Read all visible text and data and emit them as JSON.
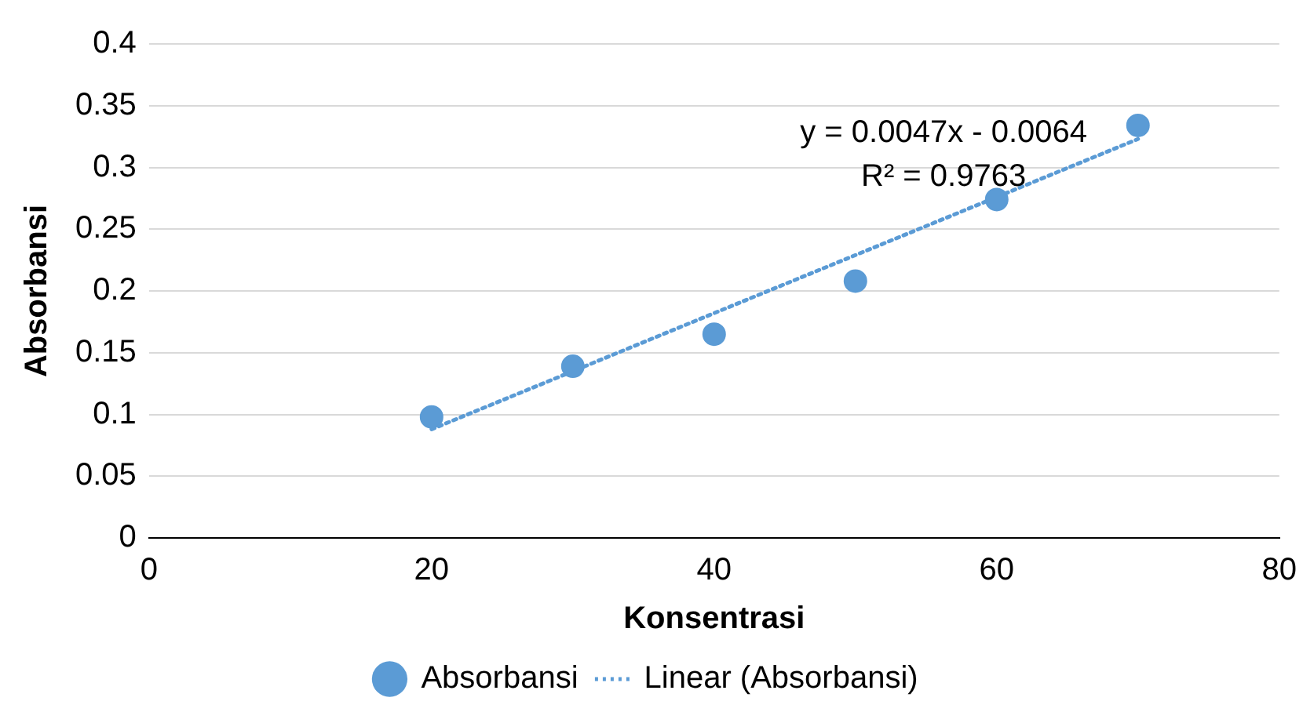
{
  "chart_data": {
    "type": "scatter",
    "xlabel": "Konsentrasi",
    "ylabel": "Absorbansi",
    "xlim": [
      0,
      80
    ],
    "xticks": [
      0,
      20,
      40,
      60,
      80
    ],
    "ylim": [
      0,
      0.4
    ],
    "yticks": [
      0,
      0.05,
      0.1,
      0.15,
      0.2,
      0.25,
      0.3,
      0.35,
      0.4
    ],
    "grid": "y",
    "legend": "bottom",
    "marker": "circle",
    "series": [
      {
        "name": "Absorbansi",
        "type": "scatter",
        "color": "#5b9bd5",
        "x": [
          20,
          30,
          40,
          50,
          60,
          70
        ],
        "values": [
          0.098,
          0.139,
          0.165,
          0.208,
          0.274,
          0.334
        ]
      },
      {
        "name": "Linear (Absorbansi)",
        "type": "line",
        "line_style": "dotted",
        "marker": "none",
        "color": "#5b9bd5",
        "x": [
          20,
          70
        ],
        "values": [
          0.088,
          0.323
        ]
      }
    ],
    "annotations": [
      "y = 0.0047x - 0.0064",
      "R² = 0.9763"
    ]
  }
}
